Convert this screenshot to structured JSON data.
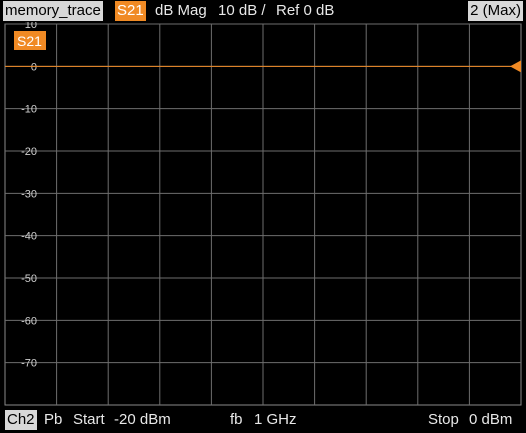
{
  "header": {
    "trace_name": "memory_trace",
    "trace_tag": "S21",
    "format": "dB Mag",
    "scale": "10 dB /",
    "ref": "Ref 0 dB",
    "window_id": "2 (Max)"
  },
  "plot": {
    "trace_label": "S21",
    "y_ticks": [
      "10",
      "0",
      "-10",
      "-20",
      "-30",
      "-40",
      "-50",
      "-60",
      "-70"
    ],
    "trace_color": "#f08a24",
    "grid_color": "#6e6e6e",
    "trace_value_db": 0,
    "ylim": [
      -80,
      10
    ]
  },
  "footer": {
    "channel": "Ch2",
    "sweep_type": "Pb",
    "start_label": "Start",
    "start_value": "-20 dBm",
    "fb_label": "fb",
    "fb_value": "1 GHz",
    "stop_label": "Stop",
    "stop_value": "0 dBm"
  }
}
